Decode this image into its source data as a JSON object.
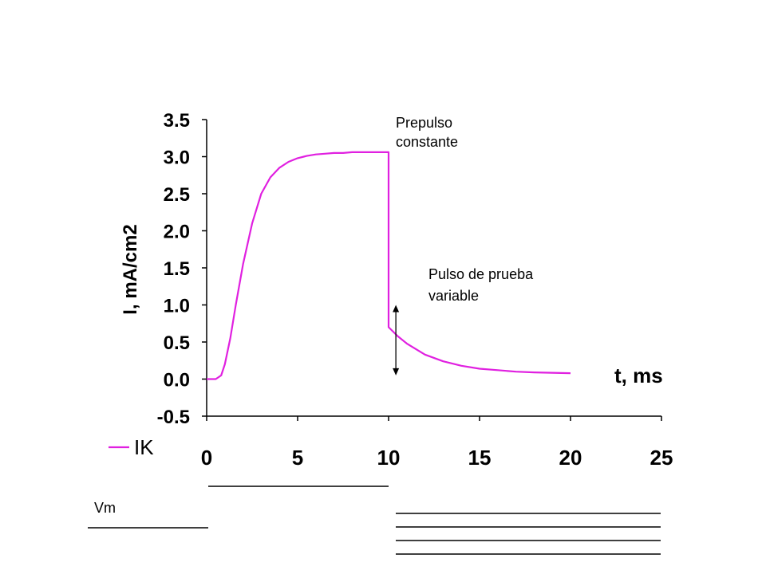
{
  "chart_data": {
    "type": "line",
    "title": "",
    "xlabel": "t, ms",
    "ylabel": "I, mA/cm2",
    "xlim": [
      0,
      25
    ],
    "ylim": [
      -0.5,
      3.5
    ],
    "x_ticks": [
      "0",
      "5",
      "10",
      "15",
      "20",
      "25"
    ],
    "y_ticks": [
      "3.5",
      "3.0",
      "2.5",
      "2.0",
      "1.5",
      "1.0",
      "0.5",
      "0.0",
      "-0.5"
    ],
    "grid": false,
    "legend_position": "bottom-left",
    "series": [
      {
        "name": "IK",
        "color": "#e020e0",
        "x": [
          0,
          0.5,
          0.8,
          1.0,
          1.3,
          1.6,
          2.0,
          2.5,
          3.0,
          3.5,
          4.0,
          4.5,
          5.0,
          5.5,
          6.0,
          6.5,
          7.0,
          7.5,
          8.0,
          8.5,
          9.0,
          9.5,
          10.0,
          10.0,
          10.5,
          11.0,
          12.0,
          13.0,
          14.0,
          15.0,
          16.0,
          17.0,
          18.0,
          19.0,
          20.0
        ],
        "y": [
          0.0,
          0.0,
          0.05,
          0.2,
          0.55,
          1.0,
          1.55,
          2.1,
          2.5,
          2.72,
          2.85,
          2.93,
          2.98,
          3.01,
          3.03,
          3.04,
          3.05,
          3.05,
          3.06,
          3.06,
          3.06,
          3.06,
          3.06,
          0.7,
          0.58,
          0.48,
          0.33,
          0.24,
          0.18,
          0.14,
          0.12,
          0.1,
          0.09,
          0.085,
          0.08
        ]
      }
    ],
    "annotations": [
      {
        "text_lines": [
          "Prepulso",
          "constante"
        ],
        "x": 10.4,
        "y": 3.32
      },
      {
        "text_lines": [
          "Pulso de prueba",
          "variable"
        ],
        "x": 12.2,
        "y": 1.2
      }
    ],
    "arrow": {
      "x": 10.4,
      "y_from": 0.05,
      "y_to": 1.0
    }
  },
  "voltage_protocol": {
    "label": "Vm"
  }
}
